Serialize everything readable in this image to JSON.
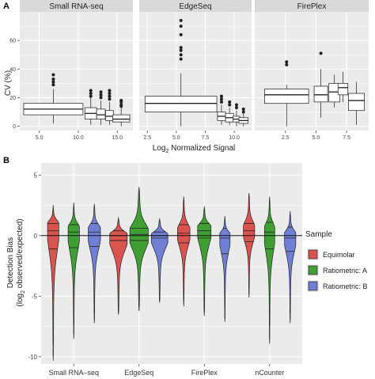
{
  "panel_labels": {
    "a": "A",
    "b": "B"
  },
  "colors": {
    "panel_bg": "#ebebeb",
    "grid": "#ffffff",
    "strip": "#d9d9d9",
    "box_fill": "#ffffff",
    "equimolar": "#d9534f",
    "ratiometric_a": "#3f9e34",
    "ratiometric_b": "#6f7fd4"
  },
  "chart_data": [
    {
      "type": "box",
      "facets": [
        "Small RNA-seq",
        "EdgeSeq",
        "FirePlex"
      ],
      "ylabel": "CV (%)",
      "xlabel_prefix": "Log",
      "xlabel_sub": "2",
      "xlabel_suffix": " Normalized Signal",
      "ylim": [
        -3,
        80
      ],
      "yticks": [
        0,
        20,
        40,
        60
      ],
      "ytick_labels": [
        "0",
        "20",
        "40",
        "60"
      ],
      "panels": [
        {
          "name": "Small RNA-seq",
          "xlim": [
            2.5,
            17.0
          ],
          "xticks": [
            5.0,
            10.0,
            15.0
          ],
          "xtick_labels": [
            "5.0",
            "10.0",
            "15.0"
          ],
          "boxes": [
            {
              "x": 6.8,
              "w": 7.6,
              "min": 2,
              "q1": 8,
              "median": 12,
              "q3": 16,
              "max": 26,
              "outliers": [
                29,
                31,
                33,
                36
              ]
            },
            {
              "x": 11.6,
              "w": 1.5,
              "min": 1,
              "q1": 5,
              "median": 9,
              "q3": 13,
              "max": 20,
              "outliers": [
                21,
                23,
                25
              ]
            },
            {
              "x": 12.9,
              "w": 1.1,
              "min": 1,
              "q1": 5,
              "median": 8,
              "q3": 12,
              "max": 18,
              "outliers": [
                20,
                22,
                24
              ]
            },
            {
              "x": 14.0,
              "w": 1.0,
              "min": 1,
              "q1": 4,
              "median": 7,
              "q3": 11,
              "max": 17,
              "outliers": [
                19,
                21,
                23,
                25
              ]
            },
            {
              "x": 15.5,
              "w": 2.2,
              "min": 0,
              "q1": 3,
              "median": 5,
              "q3": 8,
              "max": 13,
              "outliers": [
                14,
                15,
                17,
                18
              ]
            }
          ]
        },
        {
          "name": "EdgeSeq",
          "xlim": [
            1.8,
            11.5
          ],
          "xticks": [
            2.5,
            5.0,
            7.5,
            10.0
          ],
          "xtick_labels": [
            "2.5",
            "5.0",
            "7.5",
            "10.0"
          ],
          "boxes": [
            {
              "x": 5.4,
              "w": 6.2,
              "min": 0,
              "q1": 10,
              "median": 16,
              "q3": 21,
              "max": 37,
              "outliers": [
                47,
                50,
                53,
                55,
                64,
                70,
                74
              ]
            },
            {
              "x": 8.9,
              "w": 0.7,
              "min": 1,
              "q1": 4,
              "median": 7,
              "q3": 10,
              "max": 15,
              "outliers": [
                17,
                19,
                21
              ]
            },
            {
              "x": 9.6,
              "w": 0.7,
              "min": 1,
              "q1": 3,
              "median": 6,
              "q3": 9,
              "max": 13,
              "outliers": [
                15,
                17
              ]
            },
            {
              "x": 10.2,
              "w": 0.6,
              "min": 0,
              "q1": 3,
              "median": 5,
              "q3": 7,
              "max": 11,
              "outliers": [
                13,
                15
              ]
            },
            {
              "x": 10.8,
              "w": 0.8,
              "min": 0,
              "q1": 2,
              "median": 4,
              "q3": 6,
              "max": 9,
              "outliers": [
                10,
                12
              ]
            }
          ]
        },
        {
          "name": "FirePlex",
          "xlim": [
            0.0,
            9.3
          ],
          "xticks": [
            2.5,
            5.0,
            7.5
          ],
          "xtick_labels": [
            "2.5",
            "5.0",
            "7.5"
          ],
          "boxes": [
            {
              "x": 2.6,
              "w": 3.6,
              "min": 0,
              "q1": 16,
              "median": 22,
              "q3": 26,
              "max": 29,
              "outliers": [
                43,
                45
              ]
            },
            {
              "x": 5.4,
              "w": 1.1,
              "min": 6,
              "q1": 17,
              "median": 22,
              "q3": 28,
              "max": 40,
              "outliers": [
                51
              ]
            },
            {
              "x": 6.5,
              "w": 0.9,
              "min": 13,
              "q1": 17,
              "median": 24,
              "q3": 30,
              "max": 36,
              "outliers": []
            },
            {
              "x": 7.2,
              "w": 0.8,
              "min": 17,
              "q1": 22,
              "median": 27,
              "q3": 30,
              "max": 38,
              "outliers": []
            },
            {
              "x": 8.3,
              "w": 1.3,
              "min": 1,
              "q1": 11,
              "median": 18,
              "q3": 23,
              "max": 31,
              "outliers": []
            }
          ]
        }
      ]
    },
    {
      "type": "violin",
      "ylabel_line1": "Detection Bias",
      "ylabel_line2_prefix": "(log",
      "ylabel_line2_sub": "2",
      "ylabel_line2_suffix": " observed/expected)",
      "ylim": [
        -10.6,
        6.0
      ],
      "yticks": [
        5,
        0,
        -5,
        -10
      ],
      "ytick_labels": [
        "5",
        "0",
        "-5",
        "-10"
      ],
      "hline": 0,
      "categories": [
        "Small RNA–seq",
        "EdgeSeq",
        "FirePlex",
        "nCounter"
      ],
      "legend": {
        "title": "Sample",
        "position": "right",
        "entries": [
          "Equimolar",
          "Ratiometric: A",
          "Ratiometric: B"
        ]
      },
      "series": [
        {
          "name": "Equimolar",
          "violins": [
            {
              "min": -10.3,
              "max": 2.5,
              "q1": -1.1,
              "median": 0.4,
              "q3": 1.0,
              "peak": 0.9,
              "width": 0.55
            },
            {
              "min": -6.5,
              "max": 1.5,
              "q1": -0.4,
              "median": 0.0,
              "q3": 0.4,
              "peak": 0.0,
              "width": 0.85
            },
            {
              "min": -5.8,
              "max": 3.2,
              "q1": -0.6,
              "median": 0.2,
              "q3": 0.9,
              "peak": 0.3,
              "width": 0.6
            },
            {
              "min": -5.1,
              "max": 3.5,
              "q1": -0.5,
              "median": 0.4,
              "q3": 1.0,
              "peak": 0.5,
              "width": 0.55
            }
          ]
        },
        {
          "name": "Ratiometric: A",
          "violins": [
            {
              "min": -8.5,
              "max": 2.7,
              "q1": -1.0,
              "median": 0.3,
              "q3": 0.9,
              "peak": 0.5,
              "width": 0.55
            },
            {
              "min": -6.2,
              "max": 4.0,
              "q1": -0.4,
              "median": 0.1,
              "q3": 0.6,
              "peak": 0.1,
              "width": 0.9
            },
            {
              "min": -6.6,
              "max": 2.4,
              "q1": -0.2,
              "median": 0.4,
              "q3": 1.0,
              "peak": 0.6,
              "width": 0.65
            },
            {
              "min": -8.9,
              "max": 3.2,
              "q1": -1.1,
              "median": 0.3,
              "q3": 1.1,
              "peak": 0.4,
              "width": 0.5
            }
          ]
        },
        {
          "name": "Ratiometric: B",
          "violins": [
            {
              "min": -7.2,
              "max": 2.6,
              "q1": -0.9,
              "median": 0.3,
              "q3": 1.0,
              "peak": 0.4,
              "width": 0.6
            },
            {
              "min": -5.5,
              "max": 1.4,
              "q1": -0.2,
              "median": 0.0,
              "q3": 0.3,
              "peak": 0.0,
              "width": 0.8
            },
            {
              "min": -7.1,
              "max": 1.6,
              "q1": -1.5,
              "median": -0.2,
              "q3": 0.6,
              "peak": 0.0,
              "width": 0.5
            },
            {
              "min": -7.2,
              "max": 2.0,
              "q1": -1.3,
              "median": -0.2,
              "q3": 0.7,
              "peak": 0.0,
              "width": 0.55
            }
          ]
        }
      ]
    }
  ]
}
